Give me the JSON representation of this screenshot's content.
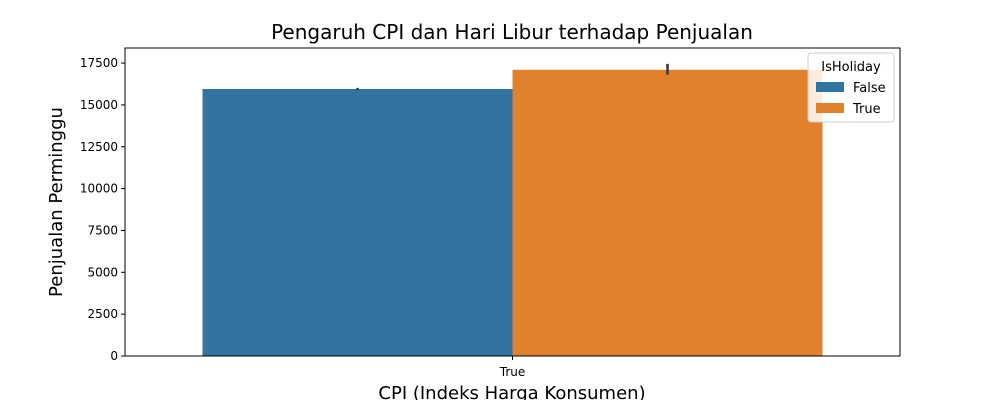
{
  "chart_data": {
    "type": "bar",
    "title": "Pengaruh CPI dan Hari Libur terhadap Penjualan",
    "xlabel": "CPI (Indeks Harga Konsumen)",
    "ylabel": "Penjualan Perminggu",
    "categories": [
      "True"
    ],
    "ylim": [
      0,
      18400
    ],
    "yticks": [
      0,
      2500,
      5000,
      7500,
      10000,
      12500,
      15000,
      17500
    ],
    "grid": false,
    "legend": {
      "title": "IsHoliday",
      "placement": "top-right"
    },
    "series": [
      {
        "name": "False",
        "color": "#3274a1",
        "values": [
          15950
        ],
        "error": [
          [
            15880,
            16020
          ]
        ]
      },
      {
        "name": "True",
        "color": "#e1812c",
        "values": [
          17100
        ],
        "error": [
          [
            16800,
            17450
          ]
        ]
      }
    ]
  }
}
